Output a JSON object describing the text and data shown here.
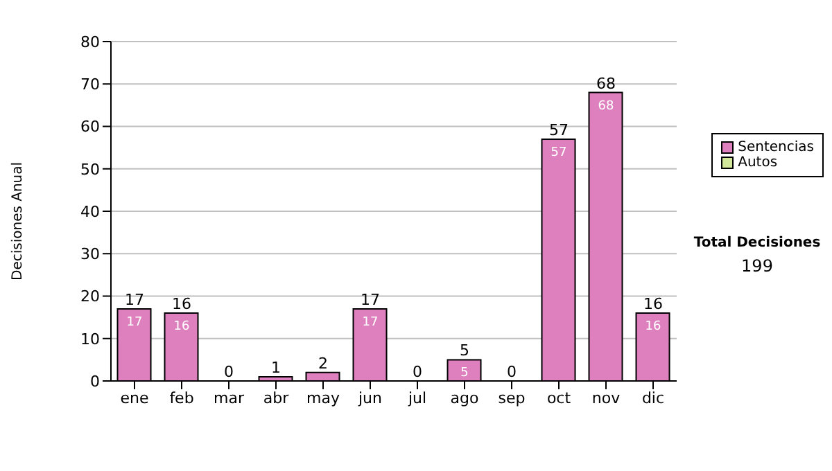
{
  "chart_data": {
    "type": "bar",
    "stacked": true,
    "ylabel": "Decisiones Anual",
    "categories": [
      "ene",
      "feb",
      "mar",
      "abr",
      "may",
      "jun",
      "jul",
      "ago",
      "sep",
      "oct",
      "nov",
      "dic"
    ],
    "series": [
      {
        "name": "Sentencias",
        "color": "#dd80bd",
        "values": [
          17,
          16,
          0,
          1,
          2,
          17,
          0,
          5,
          0,
          57,
          68,
          16
        ],
        "value_labels": [
          "17",
          "16",
          null,
          null,
          null,
          "17",
          null,
          "5",
          null,
          "57",
          "68",
          "16"
        ]
      },
      {
        "name": "Autos",
        "color": "#d4e89c",
        "values": [
          0,
          0,
          0,
          0,
          0,
          0,
          0,
          0,
          0,
          0,
          0,
          0
        ]
      }
    ],
    "totals": [
      "17",
      "16",
      "0",
      "1",
      "2",
      "17",
      "0",
      "5",
      "0",
      "57",
      "68",
      "16"
    ],
    "ylim": [
      0,
      80
    ],
    "yticks": [
      0,
      10,
      20,
      30,
      40,
      50,
      60,
      70,
      80
    ],
    "grid": "y",
    "legend": "right",
    "annotations": [
      "Total Decisiones",
      "199"
    ]
  }
}
